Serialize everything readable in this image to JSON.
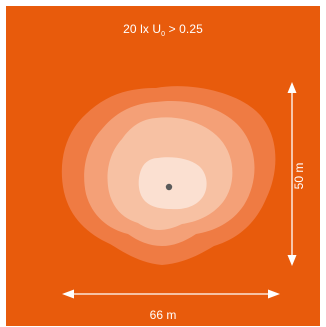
{
  "diagram": {
    "title_prefix": "20 lx U",
    "title_subscript": "0",
    "title_suffix": " > 0.25",
    "height_label": "50 m",
    "width_label": "66 m",
    "colors": {
      "background": "#e85b0c",
      "contour_outer": "#ef7b43",
      "contour_2": "#f4a077",
      "contour_3": "#f7c1a3",
      "contour_inner": "#fbe0d1",
      "source": "#5a5a5a",
      "annotation": "#ffffff"
    }
  }
}
